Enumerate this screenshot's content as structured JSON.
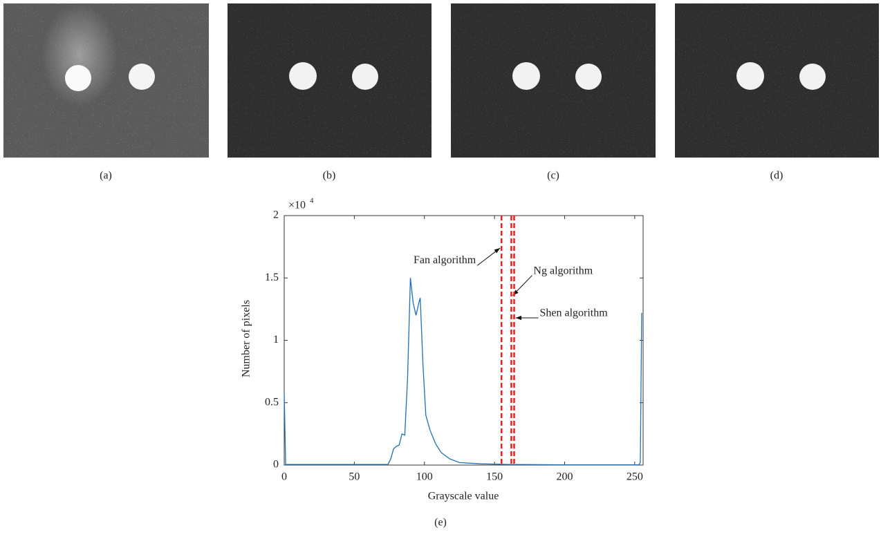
{
  "panels": [
    {
      "label": "(a)"
    },
    {
      "label": "(b)"
    },
    {
      "label": "(c)"
    },
    {
      "label": "(d)"
    }
  ],
  "chart_data": {
    "type": "line",
    "panel_label": "(e)",
    "xlabel": "Grayscale value",
    "ylabel": "Number of pixels",
    "y_multiplier": "×10",
    "y_multiplier_exponent": "4",
    "xlim": [
      0,
      256
    ],
    "ylim": [
      0,
      2
    ],
    "xticks": [
      0,
      50,
      100,
      150,
      200,
      250
    ],
    "yticks": [
      0,
      0.5,
      1,
      1.5,
      2
    ],
    "color": "#1f6fb4",
    "x": [
      0,
      1,
      74,
      76,
      78,
      80,
      82,
      84,
      86,
      88,
      90,
      92,
      94,
      96,
      97,
      99,
      101,
      104,
      108,
      112,
      118,
      125,
      140,
      160,
      200,
      253,
      254,
      255
    ],
    "values": [
      0.58,
      0.005,
      0.005,
      0.05,
      0.13,
      0.15,
      0.16,
      0.25,
      0.24,
      0.7,
      1.5,
      1.3,
      1.2,
      1.3,
      1.34,
      0.8,
      0.4,
      0.28,
      0.17,
      0.1,
      0.05,
      0.02,
      0.01,
      0.005,
      0.002,
      0.002,
      0.02,
      1.22
    ],
    "thresholds": [
      {
        "name": "Fan algorithm",
        "x": 155,
        "color": "#e02424"
      },
      {
        "name": "Ng algorithm",
        "x": 162,
        "color": "#e02424"
      },
      {
        "name": "Shen algorithm",
        "x": 164,
        "color": "#e02424"
      }
    ]
  }
}
